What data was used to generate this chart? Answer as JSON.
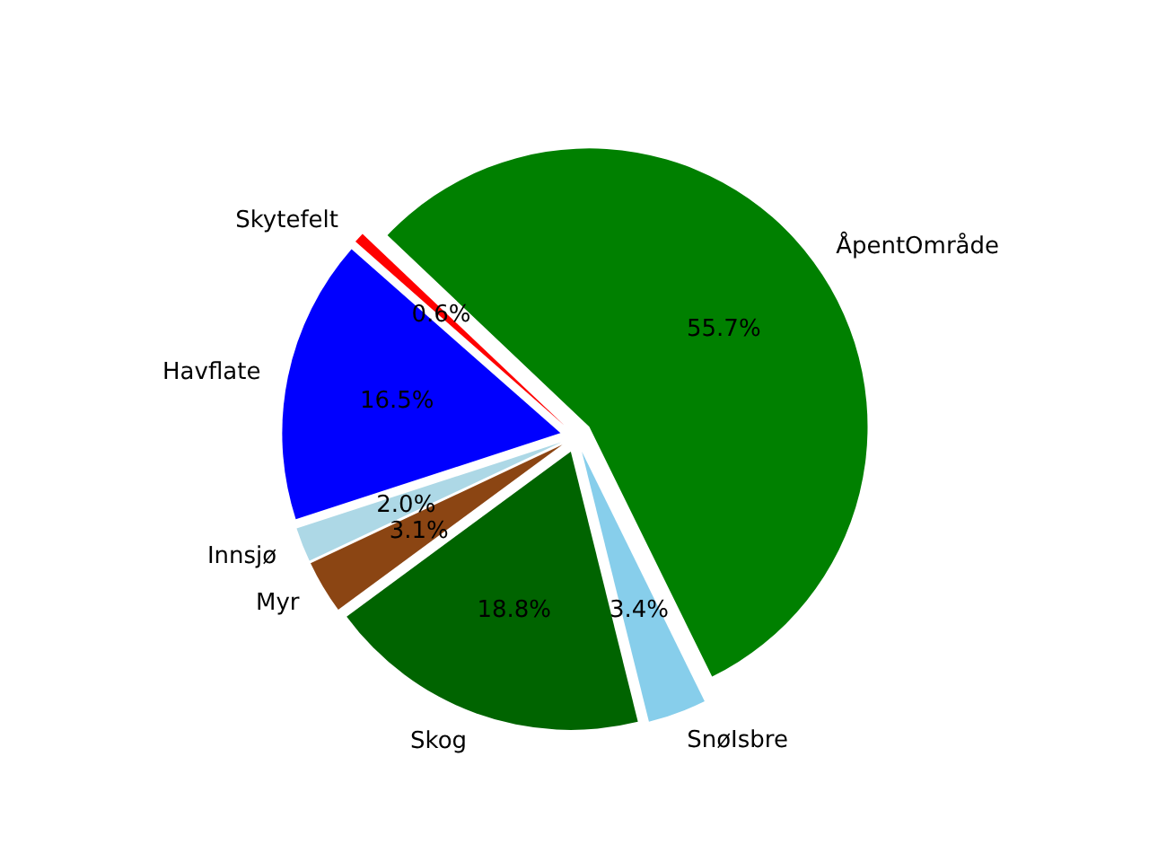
{
  "chart_data": {
    "type": "pie",
    "categories": [
      "ÅpentOmråde",
      "SnøIsbre",
      "Skog",
      "Myr",
      "Innsjø",
      "Havflate",
      "Skytefelt"
    ],
    "values": [
      55.7,
      3.4,
      18.8,
      3.1,
      2.0,
      16.5,
      0.6
    ],
    "value_labels": [
      "55.7%",
      "3.4%",
      "18.8%",
      "3.1%",
      "2.0%",
      "16.5%",
      "0.6%"
    ],
    "colors": [
      "#008000",
      "#87ceeb",
      "#006400",
      "#8b4513",
      "#add8e6",
      "#0000ff",
      "#ff0000"
    ]
  }
}
